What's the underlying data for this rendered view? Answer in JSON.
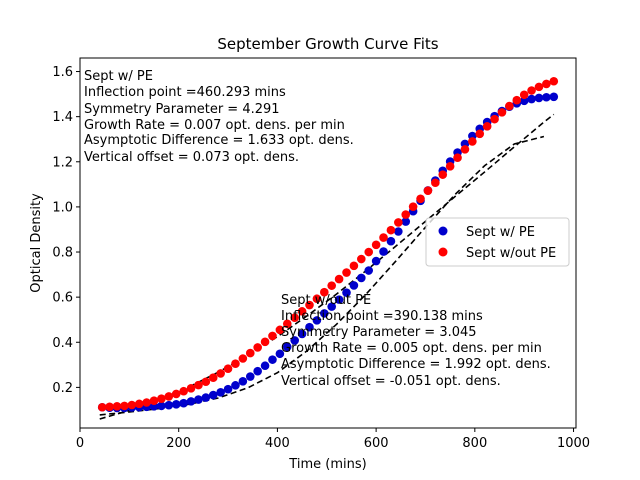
{
  "chart_data": {
    "type": "scatter",
    "title": "September Growth Curve Fits",
    "xlabel": "Time (mins)",
    "ylabel": "Optical Density",
    "xlim": [
      0,
      1005
    ],
    "ylim": [
      0.02,
      1.66
    ],
    "xticks": [
      0,
      200,
      400,
      600,
      800,
      1000
    ],
    "yticks": [
      0.2,
      0.4,
      0.6,
      0.8,
      1.0,
      1.2,
      1.4,
      1.6
    ],
    "xtick_labels": [
      "0",
      "200",
      "400",
      "600",
      "800",
      "1000"
    ],
    "ytick_labels": [
      "0.2",
      "0.4",
      "0.6",
      "0.8",
      "1.0",
      "1.2",
      "1.4",
      "1.6"
    ],
    "grid": false,
    "legend_position": "center-right",
    "x": [
      45,
      60,
      75,
      90,
      105,
      120,
      135,
      150,
      165,
      180,
      195,
      210,
      225,
      240,
      255,
      270,
      285,
      300,
      315,
      330,
      345,
      360,
      375,
      390,
      405,
      420,
      435,
      450,
      465,
      480,
      495,
      510,
      525,
      540,
      555,
      570,
      585,
      600,
      615,
      630,
      645,
      660,
      675,
      690,
      705,
      720,
      735,
      750,
      765,
      780,
      795,
      810,
      825,
      840,
      855,
      870,
      885,
      900,
      915,
      930,
      945,
      960
    ],
    "series": [
      {
        "name": "Sept w/ PE",
        "color": "#0000cc",
        "values": [
          0.112,
          0.11,
          0.109,
          0.109,
          0.111,
          0.112,
          0.114,
          0.116,
          0.118,
          0.121,
          0.125,
          0.13,
          0.138,
          0.146,
          0.155,
          0.166,
          0.178,
          0.192,
          0.209,
          0.227,
          0.248,
          0.272,
          0.296,
          0.323,
          0.349,
          0.38,
          0.408,
          0.437,
          0.467,
          0.497,
          0.528,
          0.558,
          0.589,
          0.62,
          0.652,
          0.685,
          0.718,
          0.76,
          0.802,
          0.848,
          0.891,
          0.935,
          0.981,
          1.027,
          1.073,
          1.117,
          1.16,
          1.201,
          1.241,
          1.279,
          1.314,
          1.346,
          1.376,
          1.402,
          1.425,
          1.444,
          1.459,
          1.47,
          1.478,
          1.483,
          1.486,
          1.488
        ]
      },
      {
        "name": "Sept w/out PE",
        "color": "#ff0000",
        "values": [
          0.112,
          0.114,
          0.116,
          0.118,
          0.122,
          0.127,
          0.133,
          0.141,
          0.15,
          0.16,
          0.171,
          0.183,
          0.196,
          0.21,
          0.225,
          0.243,
          0.262,
          0.283,
          0.305,
          0.328,
          0.352,
          0.377,
          0.402,
          0.428,
          0.455,
          0.482,
          0.509,
          0.537,
          0.565,
          0.593,
          0.622,
          0.651,
          0.68,
          0.709,
          0.739,
          0.769,
          0.8,
          0.832,
          0.864,
          0.897,
          0.931,
          0.966,
          1.001,
          1.036,
          1.072,
          1.107,
          1.143,
          1.18,
          1.218,
          1.255,
          1.29,
          1.324,
          1.357,
          1.389,
          1.419,
          1.447,
          1.473,
          1.497,
          1.516,
          1.532,
          1.545,
          1.557
        ]
      }
    ],
    "fit_lines": [
      {
        "style": "dashed",
        "color": "#000000",
        "points": [
          [
            40,
            0.078
          ],
          [
            100,
            0.091
          ],
          [
            160,
            0.106
          ],
          [
            220,
            0.125
          ],
          [
            280,
            0.153
          ],
          [
            340,
            0.198
          ],
          [
            400,
            0.265
          ],
          [
            460,
            0.362
          ],
          [
            520,
            0.48
          ],
          [
            580,
            0.614
          ],
          [
            640,
            0.76
          ],
          [
            700,
            0.91
          ],
          [
            760,
            1.055
          ],
          [
            820,
            1.183
          ],
          [
            880,
            1.279
          ],
          [
            940,
            1.312
          ]
        ]
      },
      {
        "style": "dashed",
        "color": "#000000",
        "points": [
          [
            40,
            0.06
          ],
          [
            100,
            0.098
          ],
          [
            160,
            0.145
          ],
          [
            220,
            0.201
          ],
          [
            280,
            0.267
          ],
          [
            340,
            0.342
          ],
          [
            400,
            0.425
          ],
          [
            460,
            0.517
          ],
          [
            520,
            0.614
          ],
          [
            580,
            0.718
          ],
          [
            640,
            0.826
          ],
          [
            700,
            0.936
          ],
          [
            760,
            1.046
          ],
          [
            820,
            1.155
          ],
          [
            880,
            1.266
          ],
          [
            940,
            1.376
          ],
          [
            960,
            1.41
          ]
        ]
      }
    ],
    "legend": [
      {
        "label": "Sept w/ PE",
        "color": "#0000cc"
      },
      {
        "label": "Sept w/out PE",
        "color": "#ff0000"
      }
    ],
    "annotations": [
      {
        "lines": [
          "Sept w/ PE",
          "Inflection point =460.293 mins",
          "Symmetry Parameter = 4.291",
          "Growth Rate = 0.007 opt. dens. per min",
          "Asymptotic Difference = 1.633 opt. dens.",
          "Vertical offset = 0.073 opt. dens."
        ]
      },
      {
        "lines": [
          "Sept w/out PE",
          "Inflection point =390.138 mins",
          "Symmetry Parameter = 3.045",
          "Growth Rate = 0.005 opt. dens. per min",
          "Asymptotic Difference = 1.992 opt. dens.",
          "Vertical offset = -0.051 opt. dens."
        ]
      }
    ]
  }
}
